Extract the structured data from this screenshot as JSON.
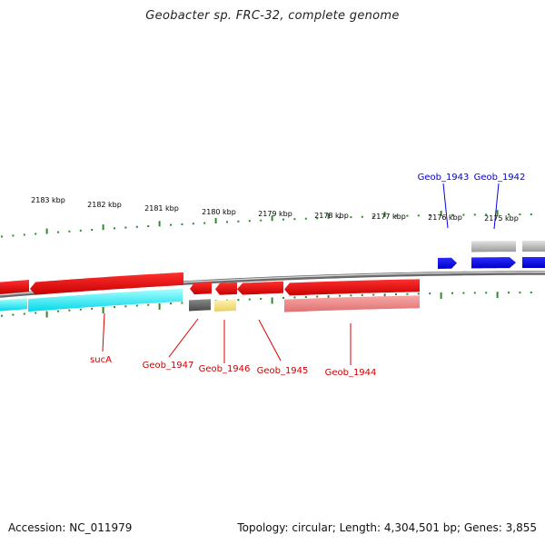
{
  "title": "Geobacter sp. FRC-32, complete genome",
  "colors": {
    "forward_gene": "#ff0000",
    "reverse_gene": "#0000ff",
    "tick": "#2d8a2d",
    "backbone": "#888888",
    "feature_cyan": "#00e5e5",
    "feature_dark": "#666666",
    "feature_yellow": "#f0e080",
    "feature_pink": "#f08a8a",
    "feature_gray": "#aaaaaa"
  },
  "scale": {
    "unit": "kbp",
    "labels": [
      "2183 kbp",
      "2182 kbp",
      "2181 kbp",
      "2180 kbp",
      "2179 kbp",
      "2178 kbp",
      "2177 kbp",
      "2176 kbp",
      "2175 kbp"
    ]
  },
  "gene_labels": {
    "red": [
      "sucA",
      "Geob_1947",
      "Geob_1946",
      "Geob_1945",
      "Geob_1944"
    ],
    "blue": [
      "Geob_1943",
      "Geob_1942"
    ]
  },
  "footer": {
    "accession": "Accession: NC_011979",
    "summary": "Topology: circular; Length: 4,304,501 bp; Genes: 3,855"
  }
}
